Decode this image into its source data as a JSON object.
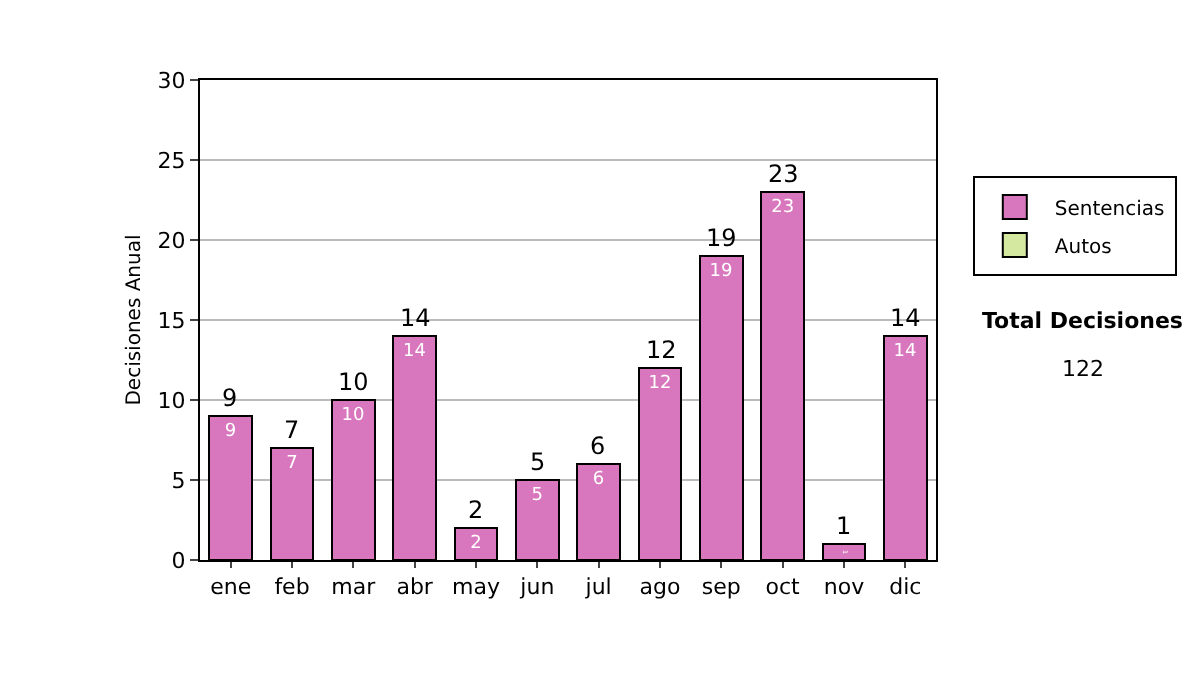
{
  "chart_data": {
    "type": "bar",
    "ylabel": "Decisiones Anual",
    "categories": [
      "ene",
      "feb",
      "mar",
      "abr",
      "may",
      "jun",
      "jul",
      "ago",
      "sep",
      "oct",
      "nov",
      "dic"
    ],
    "series": [
      {
        "name": "Sentencias",
        "color": "#d877bd",
        "values": [
          9,
          7,
          10,
          14,
          2,
          5,
          6,
          12,
          19,
          23,
          1,
          14
        ]
      },
      {
        "name": "Autos",
        "color": "#d4e8a0",
        "values": [
          null,
          null,
          null,
          null,
          null,
          null,
          null,
          null,
          null,
          null,
          null,
          null
        ]
      }
    ],
    "stacked": true,
    "data_labels": true,
    "totals": [
      "9",
      "7",
      "10",
      "14",
      "2",
      "5",
      "6",
      "12",
      "19",
      "23",
      "1",
      "14"
    ],
    "ylim": [
      0,
      30
    ],
    "yticks": [
      0,
      5,
      10,
      15,
      20,
      25,
      30
    ],
    "grid": "y",
    "legend": "right",
    "annotations": [
      "Total Decisiones",
      "122"
    ]
  }
}
